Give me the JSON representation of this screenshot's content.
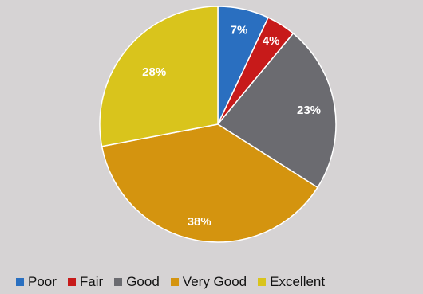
{
  "chart_data": {
    "type": "pie",
    "title": "",
    "categories": [
      "Poor",
      "Fair",
      "Good",
      "Very Good",
      "Excellent"
    ],
    "values": [
      7,
      4,
      23,
      38,
      28
    ],
    "labels": [
      "7%",
      "4%",
      "23%",
      "38%",
      "28%"
    ],
    "colors": [
      "#2a6fc0",
      "#c71a1a",
      "#6b6b70",
      "#d4940f",
      "#d9c41c"
    ],
    "start_angle_deg": 0,
    "direction": "clockwise",
    "legend_position": "bottom"
  }
}
